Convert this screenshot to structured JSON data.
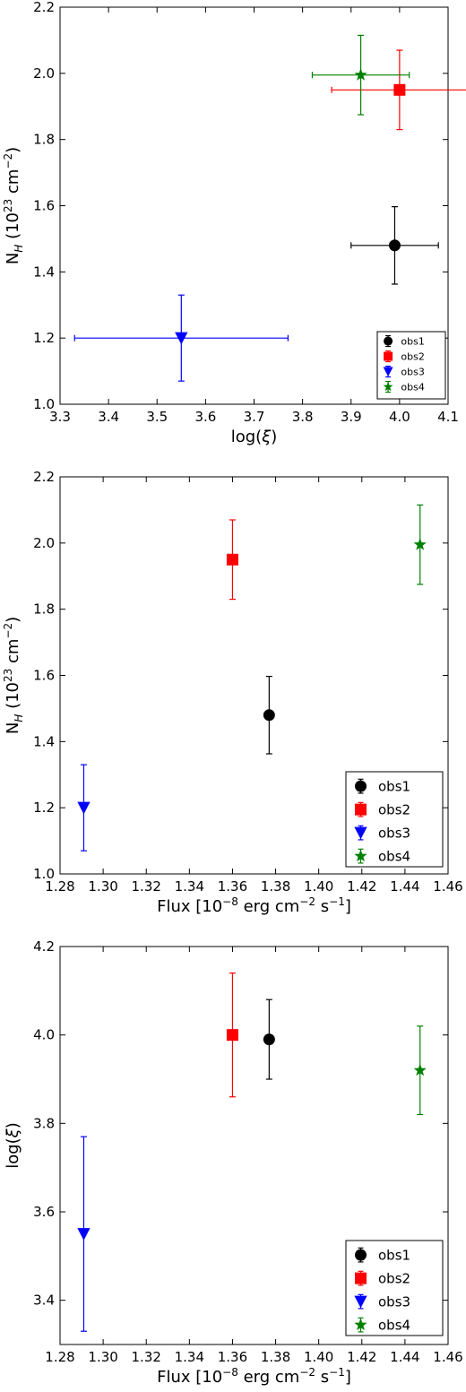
{
  "series_names": [
    "obs1",
    "obs2",
    "obs3",
    "obs4"
  ],
  "colors": [
    "#000000",
    "#ff0000",
    "#0000ff",
    "#008000"
  ],
  "markers": [
    "circle",
    "square",
    "triangle-down",
    "star"
  ],
  "chart_data": [
    {
      "type": "scatter",
      "error_bars": "x-and-y",
      "xlabel": "log(ξ)",
      "ylabel": "N_H (10^23 cm^-2)",
      "xlim": [
        3.3,
        4.1
      ],
      "ylim": [
        1.0,
        2.2
      ],
      "xticks": [
        "3.3",
        "3.4",
        "3.5",
        "3.6",
        "3.7",
        "3.8",
        "3.9",
        "4.0",
        "4.1"
      ],
      "yticks": [
        "1.0",
        "1.2",
        "1.4",
        "1.6",
        "1.8",
        "2.0",
        "2.2"
      ],
      "legend_position": "lower-right",
      "grid": false,
      "series": [
        {
          "name": "obs1",
          "x": 3.99,
          "y": 1.48,
          "xerr": [
            0.09,
            0.09
          ],
          "yerr": [
            0.117,
            0.117
          ]
        },
        {
          "name": "obs2",
          "x": 4.0,
          "y": 1.95,
          "xerr": [
            0.14,
            0.14
          ],
          "yerr": [
            0.12,
            0.12
          ]
        },
        {
          "name": "obs3",
          "x": 3.55,
          "y": 1.2,
          "xerr": [
            0.22,
            0.22
          ],
          "yerr": [
            0.13,
            0.13
          ]
        },
        {
          "name": "obs4",
          "x": 3.92,
          "y": 1.995,
          "xerr": [
            0.1,
            0.1
          ],
          "yerr": [
            0.12,
            0.12
          ]
        }
      ]
    },
    {
      "type": "scatter",
      "error_bars": "y",
      "xlabel": "Flux [10^-8 erg cm^-2 s^-1]",
      "ylabel": "N_H (10^23 cm^-2)",
      "xlim": [
        1.28,
        1.46
      ],
      "ylim": [
        1.0,
        2.2
      ],
      "xticks": [
        "1.28",
        "1.30",
        "1.32",
        "1.34",
        "1.36",
        "1.38",
        "1.40",
        "1.42",
        "1.44",
        "1.46"
      ],
      "yticks": [
        "1.0",
        "1.2",
        "1.4",
        "1.6",
        "1.8",
        "2.0",
        "2.2"
      ],
      "legend_position": "lower-right",
      "grid": false,
      "series": [
        {
          "name": "obs1",
          "x": 1.377,
          "y": 1.48,
          "yerr": [
            0.117,
            0.117
          ]
        },
        {
          "name": "obs2",
          "x": 1.36,
          "y": 1.95,
          "yerr": [
            0.12,
            0.12
          ]
        },
        {
          "name": "obs3",
          "x": 1.291,
          "y": 1.2,
          "yerr": [
            0.13,
            0.13
          ]
        },
        {
          "name": "obs4",
          "x": 1.447,
          "y": 1.995,
          "yerr": [
            0.12,
            0.12
          ]
        }
      ]
    },
    {
      "type": "scatter",
      "error_bars": "y",
      "xlabel": "Flux [10^-8 erg cm^-2 s^-1]",
      "ylabel": "log(ξ)",
      "xlim": [
        1.28,
        1.46
      ],
      "ylim": [
        3.3,
        4.2
      ],
      "xticks": [
        "1.28",
        "1.30",
        "1.32",
        "1.34",
        "1.36",
        "1.38",
        "1.40",
        "1.42",
        "1.44",
        "1.46"
      ],
      "yticks": [
        "3.4",
        "3.6",
        "3.8",
        "4.0",
        "4.2"
      ],
      "legend_position": "lower-right",
      "grid": false,
      "series": [
        {
          "name": "obs1",
          "x": 1.377,
          "y": 3.99,
          "yerr": [
            0.09,
            0.09
          ]
        },
        {
          "name": "obs2",
          "x": 1.36,
          "y": 4.0,
          "yerr": [
            0.14,
            0.14
          ]
        },
        {
          "name": "obs3",
          "x": 1.291,
          "y": 3.55,
          "yerr": [
            0.22,
            0.22
          ]
        },
        {
          "name": "obs4",
          "x": 1.447,
          "y": 3.92,
          "yerr": [
            0.1,
            0.1
          ]
        }
      ]
    }
  ]
}
